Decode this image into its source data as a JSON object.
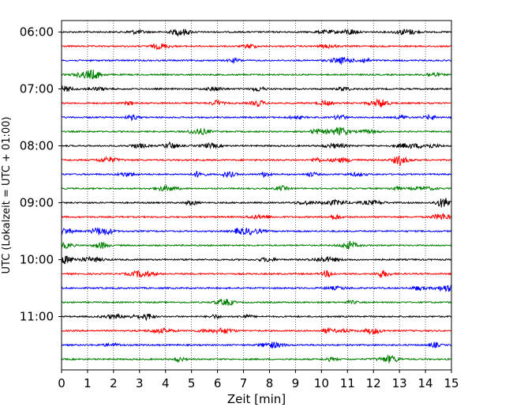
{
  "chart_data": {
    "type": "line",
    "title": "",
    "xlabel": "Zeit  [min]",
    "ylabel": "UTC (Lokalzeit = UTC + 01:00)",
    "xlim": [
      0,
      15
    ],
    "x_ticks": [
      "0",
      "1",
      "2",
      "3",
      "4",
      "5",
      "6",
      "7",
      "8",
      "9",
      "10",
      "11",
      "12",
      "13",
      "14",
      "15"
    ],
    "y_ticks": [
      "06:00",
      "07:00",
      "08:00",
      "09:00",
      "10:00",
      "11:00"
    ],
    "grid": "vertical dotted",
    "trace_colors": [
      "#000000",
      "#ff0000",
      "#0000ff",
      "#008000"
    ],
    "trace_start": "06:00",
    "trace_interval_min": 15,
    "trace_count": 24
  }
}
